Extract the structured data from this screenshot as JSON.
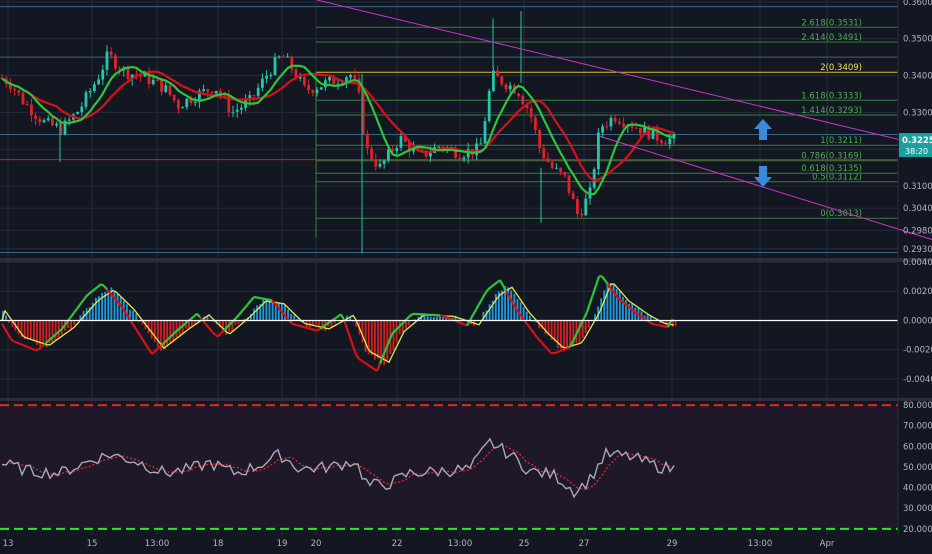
{
  "colors": {
    "background": "#131722",
    "grid": "#262b3b",
    "candle_up": "#26c6a6",
    "candle_down": "#e0212b",
    "ma_fast": "#2ec43b",
    "ma_slow": "#d5121b",
    "trendline": "#cc33cc",
    "fib_line": "#3b7d3e",
    "fib_text": "#4caf50",
    "fib_key_line": "#d9c01f",
    "fib_key_text": "#f2e35a",
    "red_level": "#e21c1c",
    "macd_pos": "#1e9be0",
    "macd_neg": "#d42020",
    "macd_fill_pos": "#1c1fa8",
    "macd_signal": "#e6e64a",
    "zero_line": "#ffffff",
    "rsi_line": "#a9a9b8",
    "rsi_ma": "#e02a3a",
    "rsi_bg": "#1f1829",
    "rsi_upper": "#e8242b",
    "rsi_lower": "#2ee52e",
    "price_label": "#1e9f9f",
    "arrow": "#3b8ad9",
    "axis_text": "#b2b5be"
  },
  "chart_data": [
    {
      "type": "candlestick",
      "pair": "price",
      "ylim": [
        0.2905,
        0.3605
      ],
      "y_ticks": [
        "0.3600",
        "0.3500",
        "0.3400",
        "0.3300",
        "0.3200",
        "0.3100",
        "0.3040",
        "0.2980",
        "0.2930"
      ],
      "x_ticks": [
        "13",
        "15",
        "13:00",
        "18",
        "19",
        "20",
        "22",
        "13:00",
        "25",
        "27",
        "29",
        "13:00",
        "Apr"
      ],
      "current_price": "0.3225",
      "countdown": "38:20",
      "fib_levels": [
        {
          "label": "0(0.3013)",
          "value": 0.3013
        },
        {
          "label": "0.5(0.3112)",
          "value": 0.3112
        },
        {
          "label": "0.618(0.3135)",
          "value": 0.3135
        },
        {
          "label": "0.786(0.3169)",
          "value": 0.3169
        },
        {
          "label": "1(0.3211)",
          "value": 0.3211
        },
        {
          "label": "1.414(0.3293)",
          "value": 0.3293
        },
        {
          "label": "1.618(0.3333)",
          "value": 0.3333
        },
        {
          "label": "2(0.3409)",
          "value": 0.3409
        },
        {
          "label": "2.414(0.3491)",
          "value": 0.3491
        },
        {
          "label": "2.618(0.3531)",
          "value": 0.3531
        }
      ],
      "horizontal_levels": [
        0.3587,
        0.345,
        0.324,
        0.3172,
        0.292
      ],
      "trendlines": [
        {
          "from": [
            317,
            0.3605
          ],
          "to": [
            932,
            0.3205
          ]
        },
        {
          "from": [
            600,
            0.3235
          ],
          "to": [
            932,
            0.2955
          ]
        }
      ],
      "annotations": [
        "up-arrow",
        "down-arrow"
      ],
      "candles": []
    },
    {
      "type": "macd",
      "ylim": [
        -0.0053,
        0.004
      ],
      "y_ticks": [
        "0.0040",
        "0.0020",
        "0.0000",
        "-0.0020",
        "-0.0040"
      ]
    },
    {
      "type": "rsi",
      "ylim": [
        17,
        82
      ],
      "y_ticks": [
        "80.0000",
        "70.0000",
        "60.0000",
        "50.0000",
        "40.0000",
        "30.0000",
        "20.0000"
      ],
      "upper_band": 80,
      "lower_band": 20
    }
  ]
}
